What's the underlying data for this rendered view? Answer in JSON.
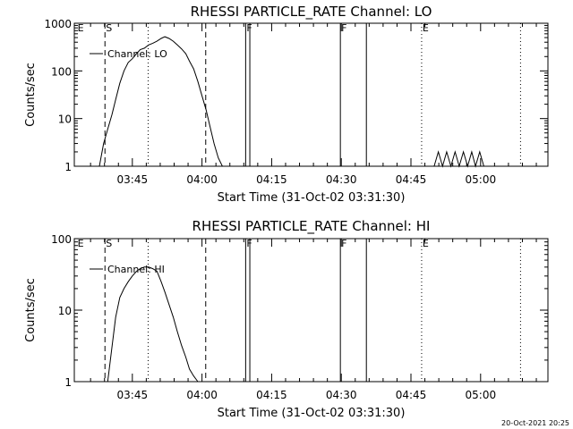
{
  "footer": {
    "timestamp": "20-Oct-2021 20:25"
  },
  "x_axis": {
    "label": "Start Time (31-Oct-02 03:31:30)",
    "ticks": [
      {
        "t": 225,
        "label": "03:45"
      },
      {
        "t": 240,
        "label": "04:00"
      },
      {
        "t": 255,
        "label": "04:15"
      },
      {
        "t": 270,
        "label": "04:30"
      },
      {
        "t": 285,
        "label": "04:45"
      },
      {
        "t": 300,
        "label": "05:00"
      }
    ],
    "minor_ticks": [
      216,
      219,
      222,
      228,
      231,
      234,
      237,
      243,
      246,
      249,
      252,
      258,
      261,
      264,
      267,
      273,
      276,
      279,
      282,
      288,
      291,
      294,
      297,
      303,
      306,
      309,
      312
    ]
  },
  "chart_data": [
    {
      "type": "line",
      "title": "RHESSI PARTICLE_RATE Channel: LO",
      "ylabel": "Counts/sec",
      "yscale": "log",
      "ylim": [
        1,
        1000
      ],
      "xlim": [
        212.5,
        314.5
      ],
      "y_ticks": [
        {
          "v": 1,
          "label": "1"
        },
        {
          "v": 10,
          "label": "10"
        },
        {
          "v": 100,
          "label": "100"
        },
        {
          "v": 1000,
          "label": "1000"
        }
      ],
      "legend": {
        "label": "Channel: LO",
        "position": "top-left"
      },
      "markers": [
        {
          "t": 213,
          "label": "E",
          "style": "none"
        },
        {
          "t": 219.1,
          "label": "S",
          "style": "dashed"
        },
        {
          "t": 228.4,
          "label": "",
          "style": "dotted"
        },
        {
          "t": 240.8,
          "label": "",
          "style": "dashed"
        },
        {
          "t": 249.4,
          "label": "F",
          "style": "solid"
        },
        {
          "t": 250.3,
          "label": "",
          "style": "solid"
        },
        {
          "t": 269.8,
          "label": "F",
          "style": "solid"
        },
        {
          "t": 275.4,
          "label": "",
          "style": "solid"
        },
        {
          "t": 287.3,
          "label": "E",
          "style": "dotted"
        },
        {
          "t": 308.6,
          "label": "",
          "style": "dotted"
        }
      ],
      "series": [
        {
          "x": [
            217.9,
            218.8,
            219.7,
            220.6,
            221.4,
            222.3,
            223.2,
            224.1,
            225.0,
            225.9,
            226.7,
            227.6,
            228.5,
            229.4,
            230.3,
            231.2,
            232.0,
            232.9,
            233.8,
            234.7,
            235.6,
            236.5,
            237.3,
            238.2,
            239.1,
            240.0,
            240.9,
            241.7,
            242.6,
            243.5,
            244.4
          ],
          "y": [
            1,
            3,
            6,
            12,
            25,
            55,
            100,
            150,
            180,
            230,
            280,
            300,
            350,
            380,
            420,
            480,
            520,
            480,
            420,
            350,
            290,
            230,
            160,
            110,
            60,
            30,
            15,
            7,
            3,
            1.5,
            1
          ],
          "tail": {
            "x": [
              290,
              290.9,
              291.8,
              292.7,
              293.6,
              294.5,
              295.4,
              296.3,
              297.2,
              298.1,
              298.9,
              299.8,
              300.7
            ],
            "y": [
              1,
              2,
              1,
              2,
              1,
              2,
              1,
              2,
              1,
              2,
              1,
              2,
              1
            ]
          }
        }
      ]
    },
    {
      "type": "line",
      "title": "RHESSI PARTICLE_RATE Channel: HI",
      "ylabel": "Counts/sec",
      "yscale": "log",
      "ylim": [
        1,
        100
      ],
      "xlim": [
        212.5,
        314.5
      ],
      "y_ticks": [
        {
          "v": 1,
          "label": "1"
        },
        {
          "v": 10,
          "label": "10"
        },
        {
          "v": 100,
          "label": "100"
        }
      ],
      "legend": {
        "label": "Channel: HI",
        "position": "top-left"
      },
      "markers": [
        {
          "t": 213,
          "label": "E",
          "style": "none"
        },
        {
          "t": 219.1,
          "label": "S",
          "style": "dashed"
        },
        {
          "t": 228.4,
          "label": "",
          "style": "dotted"
        },
        {
          "t": 240.8,
          "label": "",
          "style": "dashed"
        },
        {
          "t": 249.4,
          "label": "F",
          "style": "solid"
        },
        {
          "t": 250.3,
          "label": "",
          "style": "solid"
        },
        {
          "t": 269.8,
          "label": "F",
          "style": "solid"
        },
        {
          "t": 275.4,
          "label": "",
          "style": "solid"
        },
        {
          "t": 287.3,
          "label": "E",
          "style": "dotted"
        },
        {
          "t": 308.6,
          "label": "",
          "style": "dotted"
        }
      ],
      "series": [
        {
          "x": [
            219.7,
            220.6,
            221.4,
            222.3,
            223.2,
            224.1,
            225.0,
            225.9,
            226.7,
            227.6,
            228.5,
            229.4,
            230.3,
            231.2,
            232.0,
            232.9,
            233.8,
            234.7,
            235.6,
            236.5,
            237.3,
            238.2,
            239.1
          ],
          "y": [
            1,
            3,
            8,
            15,
            20,
            25,
            30,
            35,
            38,
            40,
            40,
            38,
            35,
            25,
            18,
            12,
            8,
            5,
            3.2,
            2.2,
            1.5,
            1.2,
            1
          ]
        }
      ]
    }
  ]
}
